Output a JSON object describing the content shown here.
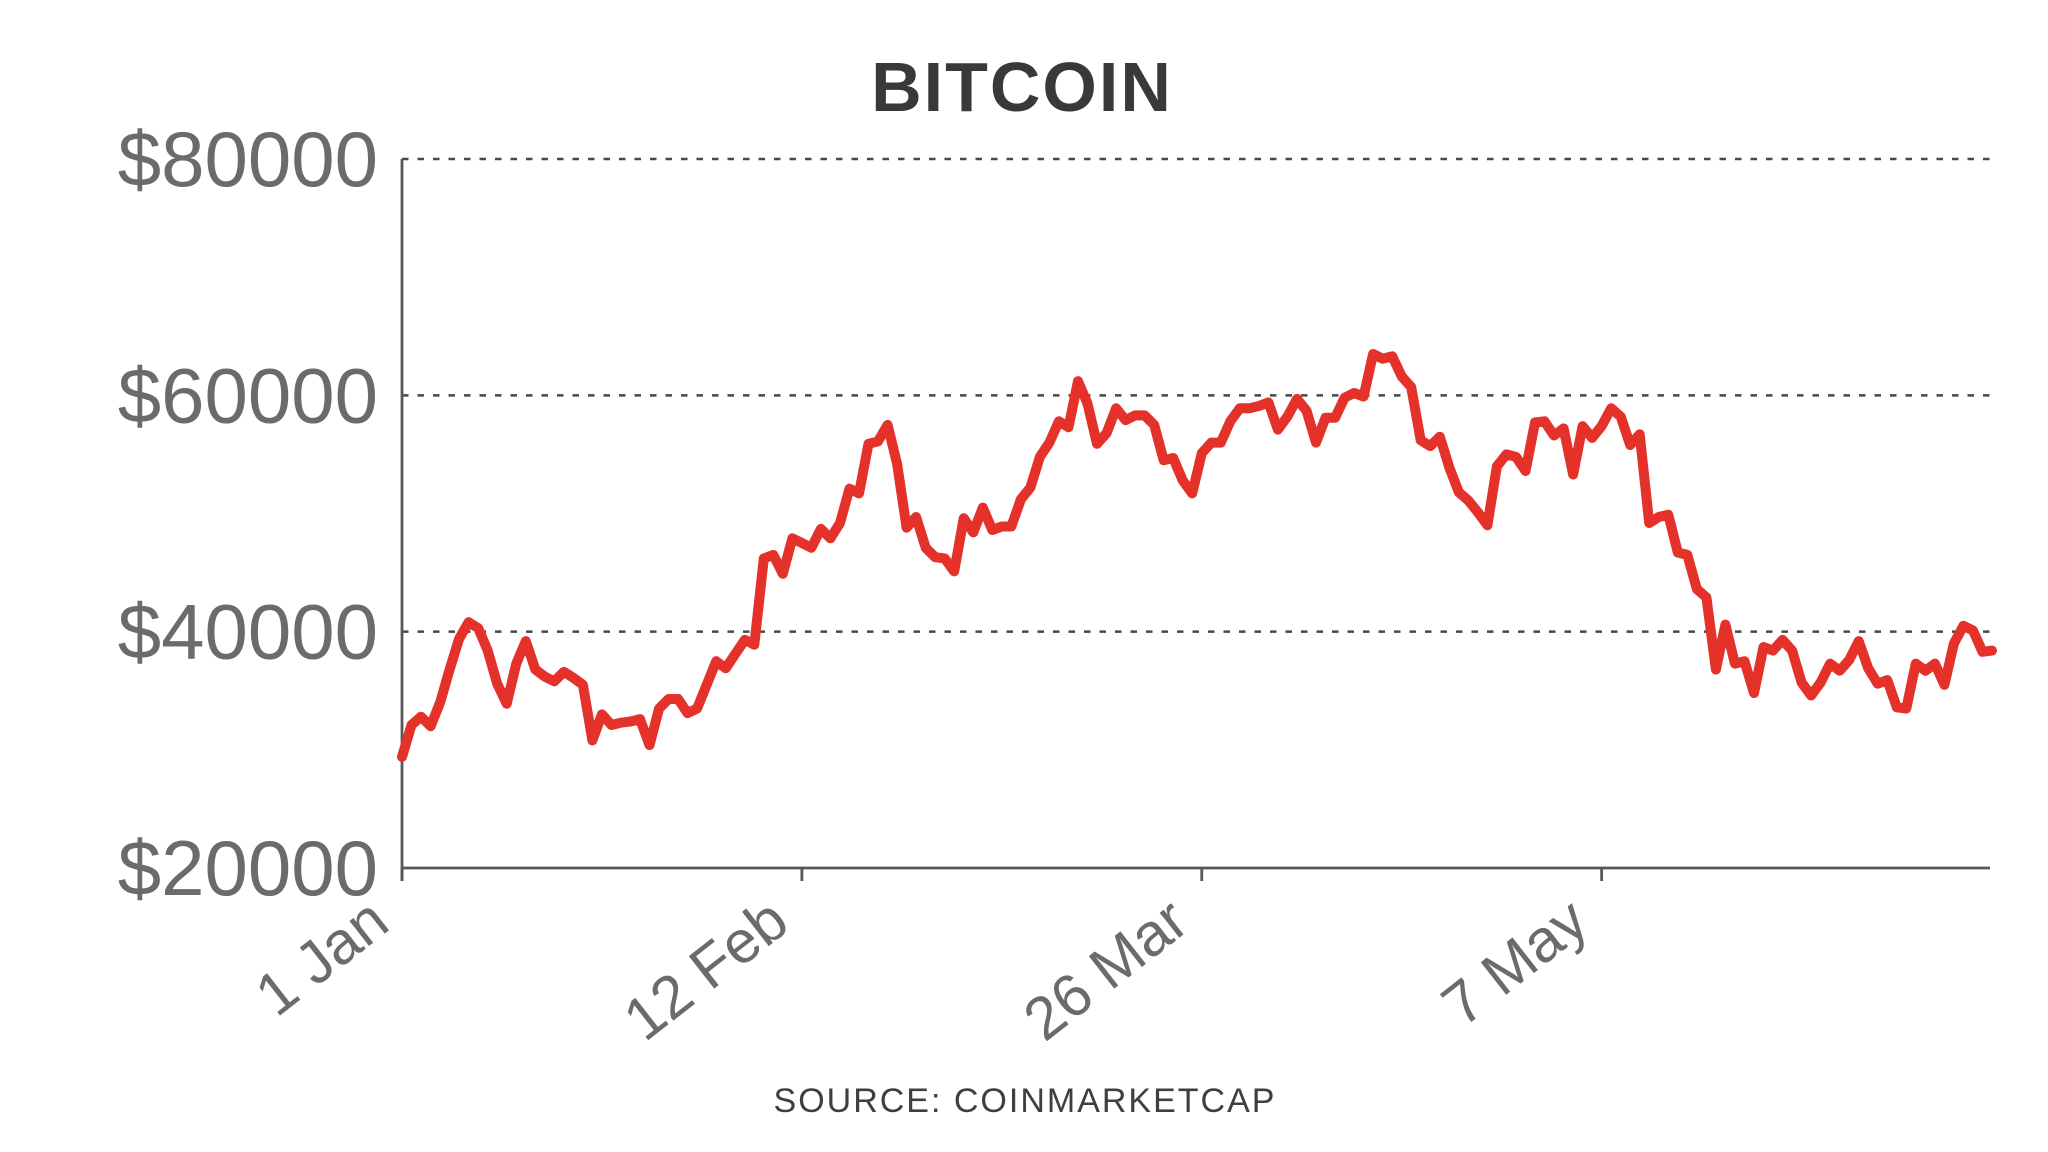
{
  "chart": {
    "title": "BITCOIN",
    "source": "SOURCE: COINMARKETCAP"
  },
  "colors": {
    "background": "#ffffff",
    "line": "#e4322b",
    "axis": "#57575a",
    "grid_dash": "#48484a",
    "tick_label": "#6b6b6e",
    "title": "#39393b",
    "source": "#3f3f42"
  },
  "chart_data": {
    "type": "line",
    "title": "BITCOIN",
    "source": "SOURCE: COINMARKETCAP",
    "xlabel": "",
    "ylabel": "",
    "x_unit": "days since 1 Jan 2021 (daily prices, 1 Jan - 17 Jun)",
    "x_tick_labels": [
      "1 Jan",
      "12 Feb",
      "26 Mar",
      "7 May"
    ],
    "x_tick_days": [
      0,
      42,
      84,
      126
    ],
    "x_tick_rotation_deg": -38,
    "y_tick_labels": [
      "$20000",
      "$40000",
      "$60000",
      "$80000"
    ],
    "y_tick_values": [
      20000,
      40000,
      60000,
      80000
    ],
    "ylim": [
      20000,
      80000
    ],
    "grid": "dashed horizontal gridlines at 40000, 60000, 80000",
    "legend": "none",
    "series": [
      {
        "name": "Bitcoin price (USD)",
        "values": [
          29400,
          32100,
          32800,
          32000,
          34000,
          36800,
          39400,
          40800,
          40300,
          38400,
          35600,
          33900,
          37300,
          39200,
          36800,
          36200,
          35800,
          36600,
          36100,
          35500,
          30800,
          33000,
          32100,
          32300,
          32400,
          32600,
          30400,
          33500,
          34300,
          34300,
          33100,
          33500,
          35500,
          37500,
          36900,
          38100,
          39300,
          38900,
          46200,
          46500,
          44900,
          47900,
          47500,
          47100,
          48700,
          47900,
          49200,
          52100,
          51700,
          55900,
          56100,
          57500,
          54200,
          48800,
          49700,
          47100,
          46300,
          46200,
          45100,
          49600,
          48400,
          50500,
          48600,
          48900,
          48900,
          51200,
          52200,
          54800,
          56000,
          57800,
          57300,
          61200,
          59300,
          55900,
          56800,
          58900,
          57900,
          58300,
          58300,
          57500,
          54500,
          54700,
          52800,
          51700,
          55100,
          56000,
          56000,
          57800,
          58900,
          58900,
          59100,
          59400,
          57100,
          58200,
          59700,
          58700,
          56000,
          58100,
          58100,
          59800,
          60200,
          59900,
          63500,
          63100,
          63300,
          61600,
          60700,
          56200,
          55700,
          56500,
          53900,
          51800,
          51100,
          50100,
          49000,
          54000,
          55000,
          54800,
          53600,
          57700,
          57800,
          56600,
          57200,
          53300,
          57400,
          56400,
          57400,
          58900,
          58200,
          55800,
          56700,
          49200,
          49700,
          49900,
          46700,
          46500,
          43600,
          42900,
          36800,
          40600,
          37300,
          37500,
          34800,
          38700,
          38400,
          39300,
          38400,
          35700,
          34600,
          35700,
          37300,
          36700,
          37600,
          39200,
          36900,
          35600,
          35900,
          33600,
          33500,
          37300,
          36700,
          37300,
          35500,
          39000,
          40500,
          40100,
          38300,
          38400
        ]
      }
    ]
  }
}
